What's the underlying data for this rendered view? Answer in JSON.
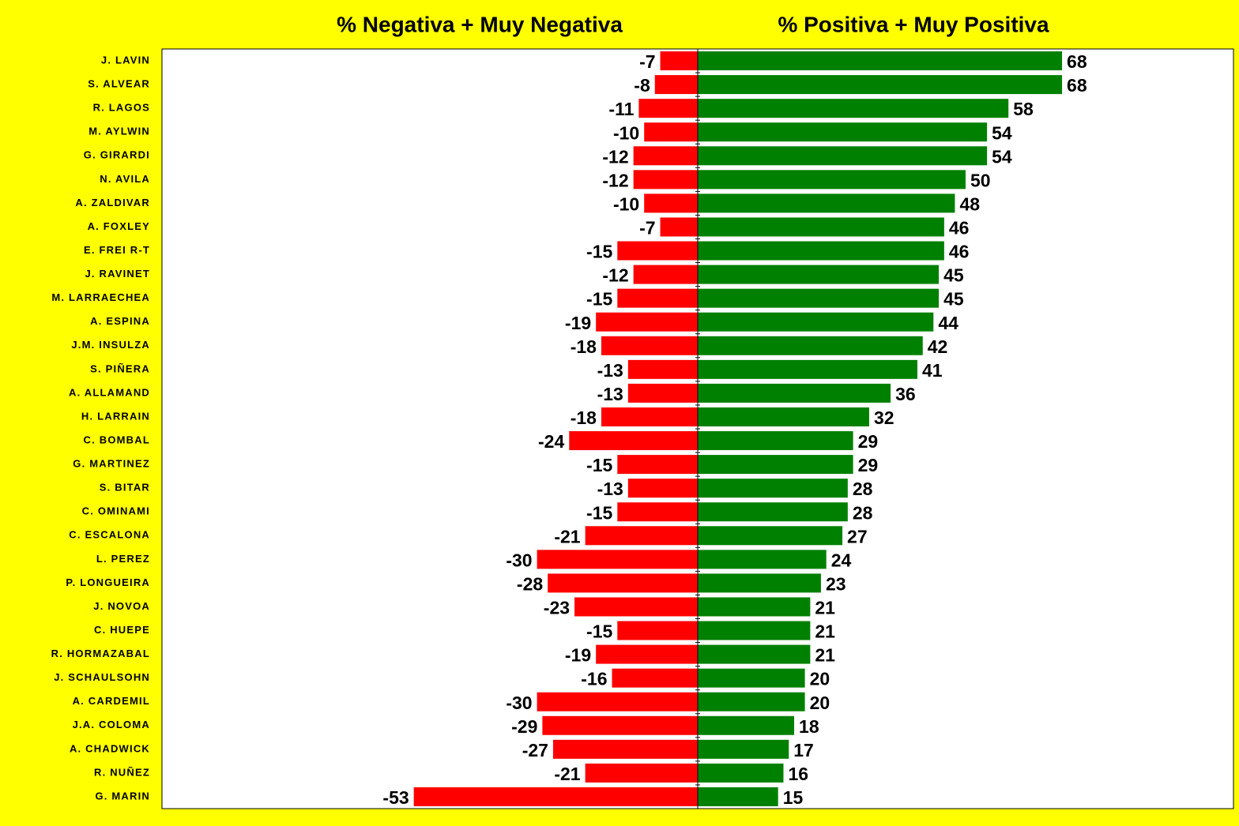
{
  "chart_data": {
    "type": "diverging_bar",
    "categories": [
      "J. LAVIN",
      "S. ALVEAR",
      "R. LAGOS",
      "M. AYLWIN",
      "G. GIRARDI",
      "N. AVILA",
      "A. ZALDIVAR",
      "A. FOXLEY",
      "E. FREI  R-T",
      "J. RAVINET",
      "M. LARRAECHEA",
      "A. ESPINA",
      "J.M. INSULZA",
      "S. PIÑERA",
      "A. ALLAMAND",
      "H. LARRAIN",
      "C. BOMBAL",
      "G. MARTINEZ",
      "S. BITAR",
      "C. OMINAMI",
      "C. ESCALONA",
      "L. PEREZ",
      "P. LONGUEIRA",
      "J. NOVOA",
      "C. HUEPE",
      "R. HORMAZABAL",
      "J. SCHAULSOHN",
      "A. CARDEMIL",
      "J.A. COLOMA",
      "A. CHADWICK",
      "R. NUÑEZ",
      "G. MARIN"
    ],
    "series": [
      {
        "name": "% Negativa + Muy Negativa",
        "color": "#ff0000",
        "values": [
          -7,
          -8,
          -11,
          -10,
          -12,
          -12,
          -10,
          -7,
          -15,
          -12,
          -15,
          -19,
          -18,
          -13,
          -13,
          -18,
          -24,
          -15,
          -13,
          -15,
          -21,
          -30,
          -28,
          -23,
          -15,
          -19,
          -16,
          -30,
          -29,
          -27,
          -21,
          -53
        ]
      },
      {
        "name": "% Positiva + Muy Positiva",
        "color": "#008000",
        "values": [
          68,
          68,
          58,
          54,
          54,
          50,
          48,
          46,
          46,
          45,
          45,
          44,
          42,
          41,
          36,
          32,
          29,
          29,
          28,
          28,
          27,
          24,
          23,
          21,
          21,
          21,
          20,
          20,
          18,
          17,
          16,
          15
        ]
      }
    ],
    "xlim": [
      -100,
      100
    ]
  }
}
